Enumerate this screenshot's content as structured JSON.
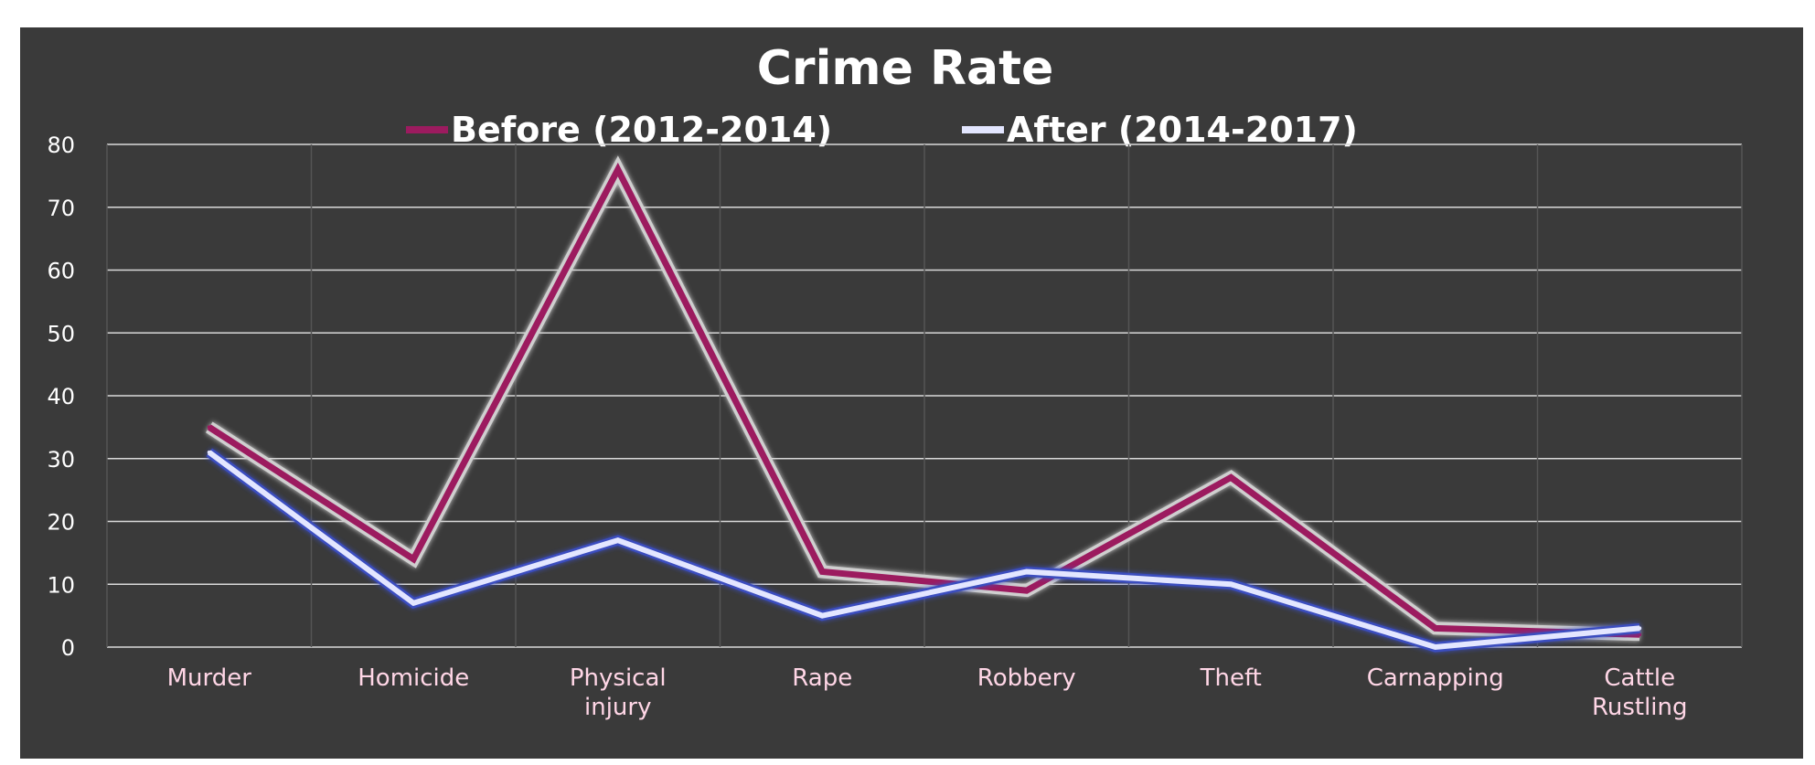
{
  "chart_data": {
    "type": "line",
    "title": "Crime Rate",
    "categories": [
      [
        "Murder"
      ],
      [
        "Homicide"
      ],
      [
        "Physical",
        "injury"
      ],
      [
        "Rape"
      ],
      [
        "Robbery"
      ],
      [
        "Theft"
      ],
      [
        "Carnapping"
      ],
      [
        "Cattle",
        "Rustling"
      ]
    ],
    "ylim": [
      0,
      80
    ],
    "yticks": [
      "0",
      "10",
      "20",
      "30",
      "40",
      "50",
      "60",
      "70",
      "80"
    ],
    "grid": true,
    "legend_position": "top",
    "series": [
      {
        "name": "Before (2012-2014)",
        "color": "#9c1b5f",
        "values": [
          35,
          14,
          76,
          12,
          9,
          27,
          3,
          2
        ]
      },
      {
        "name": "After (2014-2017)",
        "color": "#e3e6ff",
        "values": [
          31,
          7,
          17,
          5,
          12,
          10,
          0,
          3
        ]
      }
    ]
  },
  "colors": {
    "background": "#3a3a3a",
    "grid": "#d9d9d9",
    "label": "#ffd6e6"
  }
}
